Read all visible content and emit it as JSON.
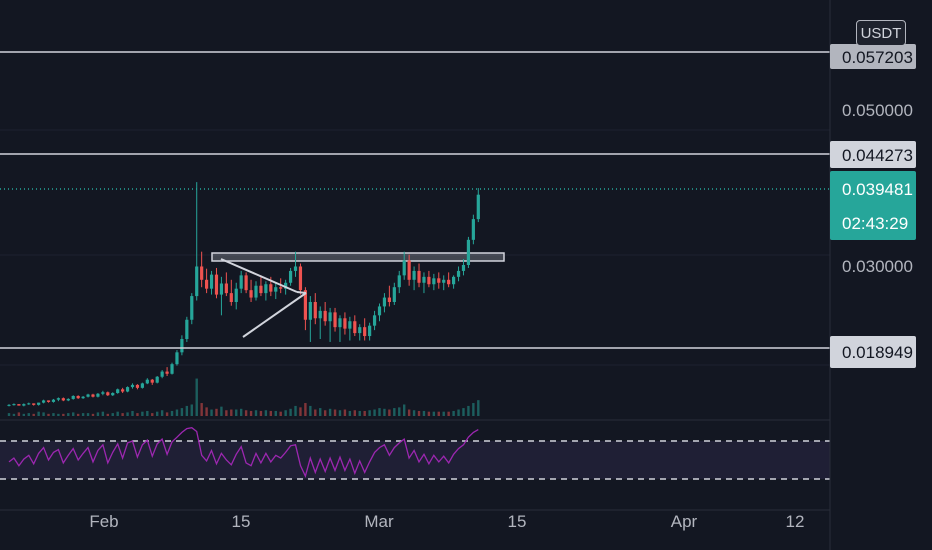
{
  "currency": "USDT",
  "price_labels": {
    "top": "0.057203",
    "mid": "0.050000",
    "res1": "0.044273",
    "current": "0.039481",
    "countdown": "02:43:29",
    "level": "0.030000",
    "support": "0.018949"
  },
  "time_labels": [
    "Feb",
    "15",
    "Mar",
    "15",
    "Apr",
    "12"
  ],
  "colors": {
    "background": "#131722",
    "up": "#26a69a",
    "down": "#ef5350",
    "rsi": "#9c27b0",
    "horizontal_line": "#d1d4dc",
    "axis_text": "#b2b5be"
  },
  "chart_data": {
    "type": "candlestick",
    "y_scale": "linear",
    "y_ticks": [
      0.03,
      0.05
    ],
    "horizontal_levels": [
      0.057203,
      0.044273,
      0.018949
    ],
    "current_price": 0.039481,
    "resistance_zone": [
      0.0302,
      0.0312
    ],
    "ohlc": [
      [
        0.011,
        0.0112,
        0.0109,
        0.0111
      ],
      [
        0.0111,
        0.0113,
        0.011,
        0.0112
      ],
      [
        0.0112,
        0.0112,
        0.011,
        0.011
      ],
      [
        0.011,
        0.0113,
        0.0109,
        0.0112
      ],
      [
        0.0112,
        0.0114,
        0.0111,
        0.0113
      ],
      [
        0.0113,
        0.0113,
        0.011,
        0.0111
      ],
      [
        0.0111,
        0.0114,
        0.011,
        0.0114
      ],
      [
        0.0114,
        0.0118,
        0.0113,
        0.0117
      ],
      [
        0.0117,
        0.0117,
        0.0114,
        0.0115
      ],
      [
        0.0115,
        0.0119,
        0.0114,
        0.0118
      ],
      [
        0.0118,
        0.0121,
        0.0116,
        0.012
      ],
      [
        0.012,
        0.0121,
        0.0116,
        0.0117
      ],
      [
        0.0117,
        0.012,
        0.0116,
        0.0119
      ],
      [
        0.0119,
        0.0124,
        0.0118,
        0.0123
      ],
      [
        0.0123,
        0.0124,
        0.0119,
        0.012
      ],
      [
        0.012,
        0.0123,
        0.0119,
        0.0122
      ],
      [
        0.0122,
        0.0126,
        0.0121,
        0.0125
      ],
      [
        0.0125,
        0.0126,
        0.0121,
        0.0122
      ],
      [
        0.0122,
        0.0127,
        0.0121,
        0.0126
      ],
      [
        0.0126,
        0.013,
        0.0124,
        0.0128
      ],
      [
        0.0128,
        0.0129,
        0.0123,
        0.0124
      ],
      [
        0.0124,
        0.0128,
        0.0123,
        0.0127
      ],
      [
        0.0127,
        0.0133,
        0.0126,
        0.0132
      ],
      [
        0.0132,
        0.0134,
        0.0127,
        0.0129
      ],
      [
        0.0129,
        0.0136,
        0.0128,
        0.0135
      ],
      [
        0.0135,
        0.014,
        0.0133,
        0.0138
      ],
      [
        0.0138,
        0.0139,
        0.0132,
        0.0134
      ],
      [
        0.0134,
        0.0141,
        0.0133,
        0.014
      ],
      [
        0.014,
        0.0147,
        0.0139,
        0.0145
      ],
      [
        0.0145,
        0.0146,
        0.0138,
        0.0141
      ],
      [
        0.0141,
        0.015,
        0.014,
        0.0149
      ],
      [
        0.0149,
        0.0158,
        0.0147,
        0.0156
      ],
      [
        0.0156,
        0.0162,
        0.015,
        0.0153
      ],
      [
        0.0153,
        0.0168,
        0.0152,
        0.0166
      ],
      [
        0.0166,
        0.0185,
        0.0164,
        0.0182
      ],
      [
        0.0182,
        0.0205,
        0.0178,
        0.02
      ],
      [
        0.02,
        0.023,
        0.0196,
        0.0226
      ],
      [
        0.0226,
        0.0262,
        0.022,
        0.0258
      ],
      [
        0.0258,
        0.0412,
        0.0252,
        0.0298
      ],
      [
        0.0298,
        0.0318,
        0.027,
        0.028
      ],
      [
        0.028,
        0.0295,
        0.0262,
        0.0268
      ],
      [
        0.0268,
        0.0292,
        0.026,
        0.0287
      ],
      [
        0.0287,
        0.0296,
        0.0255,
        0.026
      ],
      [
        0.026,
        0.0284,
        0.0232,
        0.0275
      ],
      [
        0.0275,
        0.029,
        0.0258,
        0.0262
      ],
      [
        0.0262,
        0.028,
        0.0245,
        0.025
      ],
      [
        0.025,
        0.0276,
        0.024,
        0.0268
      ],
      [
        0.0268,
        0.0292,
        0.0262,
        0.0286
      ],
      [
        0.0286,
        0.029,
        0.0262,
        0.0266
      ],
      [
        0.0266,
        0.028,
        0.025,
        0.0256
      ],
      [
        0.0256,
        0.0278,
        0.0252,
        0.0272
      ],
      [
        0.0272,
        0.0286,
        0.0258,
        0.0262
      ],
      [
        0.0262,
        0.0278,
        0.0252,
        0.0274
      ],
      [
        0.0274,
        0.0284,
        0.0258,
        0.0264
      ],
      [
        0.0264,
        0.0276,
        0.0254,
        0.027
      ],
      [
        0.027,
        0.0282,
        0.0262,
        0.0268
      ],
      [
        0.0268,
        0.028,
        0.026,
        0.0276
      ],
      [
        0.0276,
        0.0296,
        0.0272,
        0.0292
      ],
      [
        0.0292,
        0.0318,
        0.0284,
        0.0298
      ],
      [
        0.0298,
        0.0302,
        0.026,
        0.0266
      ],
      [
        0.0266,
        0.027,
        0.0212,
        0.0226
      ],
      [
        0.0226,
        0.0258,
        0.0196,
        0.025
      ],
      [
        0.025,
        0.0262,
        0.022,
        0.0228
      ],
      [
        0.0228,
        0.0244,
        0.02,
        0.0238
      ],
      [
        0.0238,
        0.025,
        0.0218,
        0.0224
      ],
      [
        0.0224,
        0.0242,
        0.0196,
        0.0236
      ],
      [
        0.0236,
        0.0242,
        0.021,
        0.0216
      ],
      [
        0.0216,
        0.0232,
        0.0196,
        0.0228
      ],
      [
        0.0228,
        0.0236,
        0.0206,
        0.0214
      ],
      [
        0.0214,
        0.023,
        0.0198,
        0.0224
      ],
      [
        0.0224,
        0.0232,
        0.0204,
        0.0208
      ],
      [
        0.0208,
        0.022,
        0.0198,
        0.0216
      ],
      [
        0.0216,
        0.0228,
        0.0198,
        0.0204
      ],
      [
        0.0204,
        0.0222,
        0.0198,
        0.0218
      ],
      [
        0.0218,
        0.0238,
        0.0212,
        0.0232
      ],
      [
        0.0232,
        0.0248,
        0.0224,
        0.0244
      ],
      [
        0.0244,
        0.0262,
        0.0236,
        0.0256
      ],
      [
        0.0256,
        0.0272,
        0.0244,
        0.025
      ],
      [
        0.025,
        0.0276,
        0.0246,
        0.027
      ],
      [
        0.027,
        0.0292,
        0.0262,
        0.0286
      ],
      [
        0.0286,
        0.0318,
        0.028,
        0.0306
      ],
      [
        0.0306,
        0.0314,
        0.0272,
        0.028
      ],
      [
        0.028,
        0.0298,
        0.0266,
        0.0292
      ],
      [
        0.0292,
        0.0302,
        0.027,
        0.0276
      ],
      [
        0.0276,
        0.029,
        0.0262,
        0.0284
      ],
      [
        0.0284,
        0.0292,
        0.027,
        0.0274
      ],
      [
        0.0274,
        0.0288,
        0.0266,
        0.0282
      ],
      [
        0.0282,
        0.029,
        0.0268,
        0.0276
      ],
      [
        0.0276,
        0.0286,
        0.0266,
        0.028
      ],
      [
        0.028,
        0.029,
        0.027,
        0.0274
      ],
      [
        0.0274,
        0.0286,
        0.0268,
        0.0284
      ],
      [
        0.0284,
        0.0298,
        0.0278,
        0.0292
      ],
      [
        0.0292,
        0.0308,
        0.0286,
        0.03
      ],
      [
        0.03,
        0.0338,
        0.0296,
        0.0334
      ],
      [
        0.0334,
        0.0368,
        0.0328,
        0.0362
      ],
      [
        0.0362,
        0.0404,
        0.0358,
        0.0395
      ]
    ],
    "rsi": {
      "upper": 70,
      "lower": 30,
      "range": [
        20,
        80
      ],
      "values": [
        48,
        52,
        44,
        51,
        55,
        46,
        57,
        63,
        50,
        58,
        61,
        47,
        55,
        62,
        50,
        57,
        63,
        48,
        60,
        66,
        47,
        58,
        67,
        52,
        68,
        70,
        53,
        66,
        71,
        54,
        67,
        72,
        56,
        69,
        74,
        79,
        83,
        84,
        80,
        55,
        49,
        60,
        46,
        57,
        50,
        45,
        56,
        64,
        47,
        44,
        57,
        47,
        57,
        48,
        55,
        52,
        58,
        65,
        66,
        44,
        33,
        52,
        37,
        51,
        38,
        52,
        39,
        53,
        39,
        51,
        36,
        49,
        37,
        48,
        58,
        63,
        66,
        55,
        63,
        68,
        72,
        52,
        60,
        48,
        56,
        46,
        55,
        48,
        54,
        47,
        56,
        62,
        66,
        74,
        79,
        82
      ]
    },
    "volume": [
      4,
      3,
      5,
      3,
      4,
      3,
      6,
      5,
      3,
      4,
      3,
      3,
      4,
      5,
      3,
      4,
      4,
      3,
      5,
      6,
      3,
      4,
      6,
      4,
      5,
      7,
      4,
      6,
      7,
      4,
      6,
      8,
      5,
      7,
      9,
      11,
      14,
      16,
      52,
      18,
      12,
      9,
      10,
      13,
      8,
      9,
      9,
      10,
      8,
      7,
      8,
      7,
      8,
      7,
      7,
      6,
      8,
      10,
      14,
      12,
      18,
      14,
      9,
      11,
      8,
      10,
      9,
      8,
      9,
      7,
      8,
      7,
      7,
      8,
      9,
      11,
      10,
      9,
      11,
      12,
      16,
      9,
      8,
      7,
      7,
      6,
      6,
      6,
      6,
      6,
      7,
      9,
      11,
      14,
      18,
      22
    ]
  }
}
